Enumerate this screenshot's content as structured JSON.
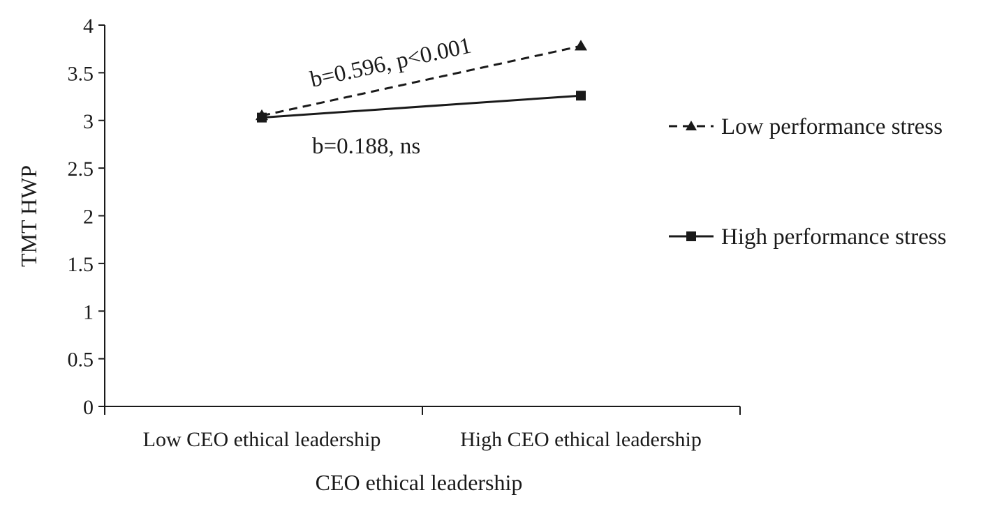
{
  "chart_data": {
    "type": "line",
    "title": "",
    "xlabel": "CEO ethical leadership",
    "ylabel": "TMT HWP",
    "categories": [
      "Low CEO ethical leadership",
      "High CEO ethical leadership"
    ],
    "ylim": [
      0,
      4
    ],
    "yticks": [
      "0",
      "0.5",
      "1",
      "1.5",
      "2",
      "2.5",
      "3",
      "3.5",
      "4"
    ],
    "grid": false,
    "legend_position": "right",
    "series": [
      {
        "name": "Low performance stress",
        "values": [
          3.05,
          3.78
        ],
        "style": "dashed",
        "marker": "triangle",
        "color": "#1a1a1a"
      },
      {
        "name": "High performance stress",
        "values": [
          3.03,
          3.26
        ],
        "style": "solid",
        "marker": "square",
        "color": "#1a1a1a"
      }
    ],
    "annotations": [
      {
        "series": "Low performance stress",
        "text": "b=0.596,  p<0.001"
      },
      {
        "series": "High performance stress",
        "text": "b=0.188,  ns"
      }
    ]
  }
}
